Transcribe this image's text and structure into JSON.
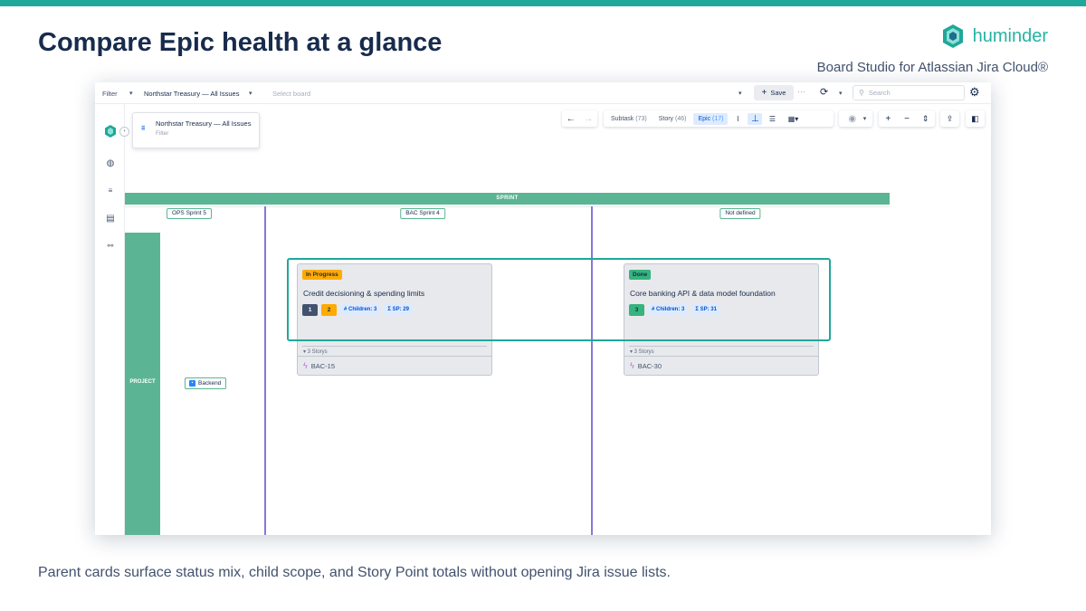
{
  "slide": {
    "headline": "Compare Epic health at a glance",
    "brand_name": "huminder",
    "subtitle": "Board Studio for Atlassian Jira Cloud®",
    "caption": "Parent cards surface status mix, child scope, and Story Point totals without opening Jira issue lists.",
    "accent_color": "#1fa89a"
  },
  "app": {
    "topbar": {
      "filter_label": "Filter",
      "board_name": "Northstar Treasury — All Issues",
      "select_board_placeholder": "Select board",
      "save_label": "Save",
      "more_label": "···",
      "search_placeholder": "Search"
    },
    "filter_card": {
      "title": "Northstar Treasury — All Issues",
      "subtitle": "Filter"
    },
    "toolbar": {
      "tabs": [
        {
          "label": "Subtask",
          "count": "(73)"
        },
        {
          "label": "Story",
          "count": "(46)"
        },
        {
          "label": "Epic",
          "count": "(17)"
        }
      ]
    },
    "board": {
      "sprint_header": "SPRINT",
      "project_header": "PROJECT",
      "columns": [
        "OPS Sprint 5",
        "BAC Sprint 4",
        "Not defined"
      ],
      "swimlane": "Backend",
      "cards": [
        {
          "status": "In Progress",
          "status_color": "#ffab00",
          "title": "Credit decisioning & spending limits",
          "status_counts": [
            {
              "value": "1",
              "color": "#42526e"
            },
            {
              "value": "2",
              "color": "#ffab00"
            }
          ],
          "children_label": "# Children: 3",
          "sp_label": "Σ SP: 29",
          "stories_label": "▾ 3 Storys",
          "key": "BAC-15"
        },
        {
          "status": "Done",
          "status_color": "#36b37e",
          "title": "Core banking API & data model foundation",
          "status_counts": [
            {
              "value": "3",
              "color": "#36b37e"
            }
          ],
          "children_label": "# Children: 3",
          "sp_label": "Σ SP: 31",
          "stories_label": "▾ 3 Storys",
          "key": "BAC-30"
        }
      ]
    }
  }
}
